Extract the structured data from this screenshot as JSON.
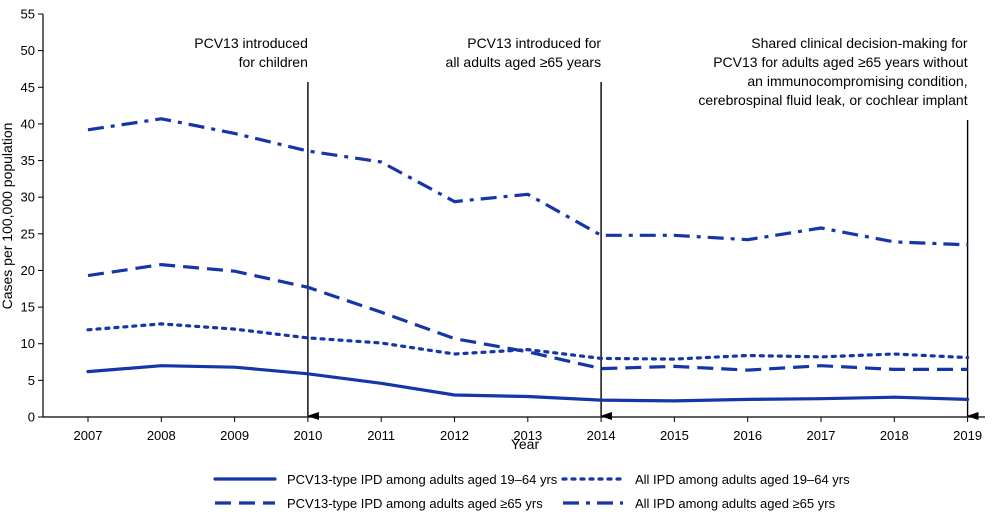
{
  "chart_data": {
    "type": "line",
    "xlabel": "Year",
    "ylabel": "Cases per 100,000 population",
    "ylim": [
      0,
      55
    ],
    "yticks": [
      0,
      5,
      10,
      15,
      20,
      25,
      30,
      35,
      40,
      45,
      50,
      55
    ],
    "categories": [
      "2007",
      "2008",
      "2009",
      "2010",
      "2011",
      "2012",
      "2013",
      "2014",
      "2015",
      "2016",
      "2017",
      "2018",
      "2019"
    ],
    "grid": false,
    "legend_position": "bottom",
    "series": [
      {
        "name": "PCV13-type IPD among adults aged 19–64 yrs",
        "style": "solid",
        "values": [
          6.2,
          7.0,
          6.8,
          5.9,
          4.6,
          3.0,
          2.8,
          2.3,
          2.2,
          2.4,
          2.5,
          2.7,
          2.4
        ]
      },
      {
        "name": "PCV13-type IPD among adults aged ≥65 yrs",
        "style": "dashed",
        "values": [
          19.3,
          20.8,
          19.9,
          17.7,
          14.3,
          10.7,
          8.9,
          6.6,
          6.9,
          6.4,
          7.0,
          6.5,
          6.5
        ]
      },
      {
        "name": "All IPD among adults aged 19–64 yrs",
        "style": "dotted",
        "values": [
          11.9,
          12.7,
          12.0,
          10.8,
          10.1,
          8.6,
          9.2,
          8.0,
          7.9,
          8.4,
          8.2,
          8.6,
          8.1
        ]
      },
      {
        "name": "All IPD among adults aged ≥65 yrs",
        "style": "dashdot",
        "values": [
          39.2,
          40.7,
          38.7,
          36.3,
          34.8,
          29.4,
          30.4,
          24.8,
          24.8,
          24.2,
          25.8,
          23.9,
          23.5
        ]
      }
    ],
    "annotations": [
      {
        "x": "2010",
        "lines": [
          "PCV13 introduced",
          "for children"
        ]
      },
      {
        "x": "2014",
        "lines": [
          "PCV13 introduced for",
          "all adults aged ≥65 years"
        ]
      },
      {
        "x": "2019",
        "lines": [
          "Shared clinical decision-making for",
          "PCV13 for adults aged ≥65 years without",
          "an immunocompromising condition,",
          "cerebrospinal fluid leak, or cochlear implant"
        ]
      }
    ]
  },
  "colors": {
    "series": "#1535a8",
    "axis": "#000000"
  }
}
